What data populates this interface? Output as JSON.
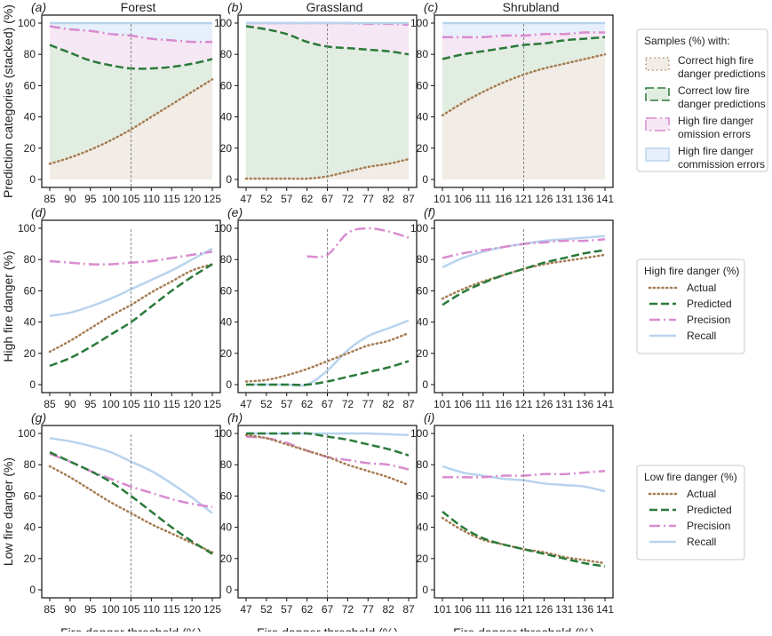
{
  "colors": {
    "actual": "#a67c52",
    "predicted": "#2a7a3a",
    "precision": "#d98bd0",
    "recall": "#b8d3ee",
    "fill_actual": "#f1ece5",
    "fill_predicted": "#e2ede2",
    "fill_omission": "#f6e7f4",
    "fill_commission": "#e7f0fa",
    "axis": "#111111",
    "vline": "#888888",
    "legend_border": "#c8c8c8"
  },
  "figure": {
    "column_titles": [
      "Forest",
      "Grassland",
      "Shrubland"
    ],
    "x_axis_label": "Fire danger threshold (%)",
    "row_labels": [
      "Prediction categories (stacked) (%)",
      "High fire danger (%)",
      "Low fire danger (%)"
    ],
    "panel_letters": [
      "(a)",
      "(b)",
      "(c)",
      "(d)",
      "(e)",
      "(f)",
      "(g)",
      "(h)",
      "(i)"
    ]
  },
  "legends": [
    {
      "title": "Samples (%) with:",
      "entries": [
        {
          "label_lines": [
            "Correct high fire",
            "danger predictions"
          ],
          "style": "actual-fill"
        },
        {
          "label_lines": [
            "Correct low fire",
            "danger predictions"
          ],
          "style": "predicted-fill"
        },
        {
          "label_lines": [
            "High fire danger",
            "omission errors"
          ],
          "style": "precision-fill"
        },
        {
          "label_lines": [
            "High fire danger",
            "commission errors"
          ],
          "style": "recall-fill"
        }
      ]
    },
    {
      "title": "High fire danger (%)",
      "entries": [
        {
          "label_lines": [
            "Actual"
          ],
          "style": "actual"
        },
        {
          "label_lines": [
            "Predicted"
          ],
          "style": "predicted"
        },
        {
          "label_lines": [
            "Precision"
          ],
          "style": "precision"
        },
        {
          "label_lines": [
            "Recall"
          ],
          "style": "recall"
        }
      ]
    },
    {
      "title": "Low fire danger (%)",
      "entries": [
        {
          "label_lines": [
            "Actual"
          ],
          "style": "actual"
        },
        {
          "label_lines": [
            "Predicted"
          ],
          "style": "predicted"
        },
        {
          "label_lines": [
            "Precision"
          ],
          "style": "precision"
        },
        {
          "label_lines": [
            "Recall"
          ],
          "style": "recall"
        }
      ]
    }
  ],
  "chart_data": [
    {
      "panel": "(a)",
      "type": "area",
      "title": "Forest",
      "ylabel": "Prediction categories (stacked) (%)",
      "xlabel": "",
      "x": [
        85,
        90,
        95,
        100,
        105,
        110,
        115,
        120,
        125
      ],
      "xticks": [
        "85",
        "90",
        "95",
        "100",
        "105",
        "110",
        "115",
        "120",
        "125"
      ],
      "ylim": [
        0,
        100
      ],
      "yticks": [
        0,
        20,
        40,
        60,
        80,
        100
      ],
      "vline": 105,
      "series": [
        {
          "key": "actual",
          "values": [
            10,
            14,
            19,
            25,
            32,
            40,
            48,
            56,
            64
          ]
        },
        {
          "key": "predicted",
          "values": [
            86,
            81,
            76,
            73,
            71,
            71,
            72,
            74,
            77
          ]
        },
        {
          "key": "precision",
          "values": [
            98,
            96,
            95,
            93,
            92,
            90,
            89,
            88,
            88
          ]
        },
        {
          "key": "recall",
          "values": [
            100,
            100,
            100,
            100,
            100,
            100,
            100,
            100,
            100
          ]
        }
      ]
    },
    {
      "panel": "(b)",
      "type": "area",
      "title": "Grassland",
      "ylabel": "",
      "xlabel": "",
      "x": [
        47,
        52,
        57,
        62,
        67,
        72,
        77,
        82,
        87
      ],
      "xticks": [
        "47",
        "52",
        "57",
        "62",
        "67",
        "72",
        "77",
        "82",
        "87"
      ],
      "ylim": [
        0,
        100
      ],
      "yticks": [
        0,
        20,
        40,
        60,
        80,
        100
      ],
      "vline": 67,
      "series": [
        {
          "key": "actual",
          "values": [
            0.5,
            0.5,
            0.5,
            0.5,
            2,
            5,
            8,
            10,
            13
          ]
        },
        {
          "key": "predicted",
          "values": [
            98,
            96,
            93,
            88,
            85,
            84,
            83,
            82,
            80
          ]
        },
        {
          "key": "precision",
          "values": [
            100,
            100,
            100,
            100,
            100,
            100,
            99.5,
            99.5,
            99
          ]
        },
        {
          "key": "recall",
          "values": [
            100,
            100,
            100,
            100,
            100,
            100,
            100,
            100,
            100
          ]
        }
      ]
    },
    {
      "panel": "(c)",
      "type": "area",
      "title": "Shrubland",
      "ylabel": "",
      "xlabel": "",
      "x": [
        101,
        106,
        111,
        116,
        121,
        126,
        131,
        136,
        141
      ],
      "xticks": [
        "101",
        "106",
        "111",
        "116",
        "121",
        "126",
        "131",
        "136",
        "141"
      ],
      "ylim": [
        0,
        100
      ],
      "yticks": [
        0,
        20,
        40,
        60,
        80,
        100
      ],
      "vline": 121,
      "series": [
        {
          "key": "actual",
          "values": [
            41,
            49,
            56,
            62,
            67,
            71,
            74,
            77,
            80
          ]
        },
        {
          "key": "predicted",
          "values": [
            77,
            80,
            82,
            84,
            86,
            87,
            89,
            90,
            91
          ]
        },
        {
          "key": "precision",
          "values": [
            91,
            91,
            91,
            92,
            92,
            93,
            93,
            94,
            94
          ]
        },
        {
          "key": "recall",
          "values": [
            100,
            100,
            100,
            100,
            100,
            100,
            100,
            100,
            100
          ]
        }
      ]
    },
    {
      "panel": "(d)",
      "type": "line",
      "title": "",
      "ylabel": "High fire danger (%)",
      "xlabel": "",
      "x": [
        85,
        90,
        95,
        100,
        105,
        110,
        115,
        120,
        125
      ],
      "xticks": [
        "85",
        "90",
        "95",
        "100",
        "105",
        "110",
        "115",
        "120",
        "125"
      ],
      "ylim": [
        0,
        100
      ],
      "yticks": [
        0,
        20,
        40,
        60,
        80,
        100
      ],
      "vline": 105,
      "series": [
        {
          "key": "actual",
          "values": [
            21,
            28,
            36,
            44,
            51,
            59,
            66,
            73,
            77
          ]
        },
        {
          "key": "predicted",
          "values": [
            12,
            17,
            24,
            32,
            40,
            50,
            60,
            69,
            77
          ]
        },
        {
          "key": "precision",
          "values": [
            79,
            78,
            77,
            77,
            78,
            79,
            81,
            83,
            85
          ]
        },
        {
          "key": "recall",
          "values": [
            44,
            46,
            50,
            55,
            61,
            67,
            73,
            80,
            87
          ]
        }
      ]
    },
    {
      "panel": "(e)",
      "type": "line",
      "title": "",
      "ylabel": "",
      "xlabel": "",
      "x": [
        47,
        52,
        57,
        62,
        67,
        72,
        77,
        82,
        87
      ],
      "xticks": [
        "47",
        "52",
        "57",
        "62",
        "67",
        "72",
        "77",
        "82",
        "87"
      ],
      "ylim": [
        0,
        100
      ],
      "yticks": [
        0,
        20,
        40,
        60,
        80,
        100
      ],
      "vline": 67,
      "series": [
        {
          "key": "actual",
          "values": [
            2,
            3,
            6,
            10,
            15,
            20,
            25,
            28,
            33
          ]
        },
        {
          "key": "predicted",
          "values": [
            0,
            0,
            0,
            0,
            2,
            5,
            8,
            11,
            15
          ]
        },
        {
          "key": "precision",
          "values": [
            null,
            null,
            null,
            82,
            83,
            97,
            100,
            98,
            94
          ]
        },
        {
          "key": "recall",
          "values": [
            0,
            0,
            0,
            0,
            9,
            22,
            31,
            36,
            41
          ]
        }
      ]
    },
    {
      "panel": "(f)",
      "type": "line",
      "title": "",
      "ylabel": "",
      "xlabel": "",
      "x": [
        101,
        106,
        111,
        116,
        121,
        126,
        131,
        136,
        141
      ],
      "xticks": [
        "101",
        "106",
        "111",
        "116",
        "121",
        "126",
        "131",
        "136",
        "141"
      ],
      "ylim": [
        0,
        100
      ],
      "yticks": [
        0,
        20,
        40,
        60,
        80,
        100
      ],
      "vline": 121,
      "series": [
        {
          "key": "actual",
          "values": [
            55,
            61,
            66,
            70,
            74,
            77,
            79,
            81,
            83
          ]
        },
        {
          "key": "predicted",
          "values": [
            51,
            59,
            65,
            70,
            74,
            78,
            81,
            84,
            86
          ]
        },
        {
          "key": "precision",
          "values": [
            81,
            84,
            86,
            88,
            90,
            91,
            92,
            92,
            93
          ]
        },
        {
          "key": "recall",
          "values": [
            75,
            81,
            85,
            88,
            90,
            92,
            93,
            94,
            95
          ]
        }
      ]
    },
    {
      "panel": "(g)",
      "type": "line",
      "title": "",
      "ylabel": "Low fire danger (%)",
      "xlabel": "Fire danger threshold (%)",
      "x": [
        85,
        90,
        95,
        100,
        105,
        110,
        115,
        120,
        125
      ],
      "xticks": [
        "85",
        "90",
        "95",
        "100",
        "105",
        "110",
        "115",
        "120",
        "125"
      ],
      "ylim": [
        0,
        100
      ],
      "yticks": [
        0,
        20,
        40,
        60,
        80,
        100
      ],
      "vline": 105,
      "series": [
        {
          "key": "actual",
          "values": [
            79,
            72,
            64,
            56,
            49,
            42,
            36,
            30,
            24
          ]
        },
        {
          "key": "predicted",
          "values": [
            88,
            82,
            76,
            69,
            60,
            50,
            40,
            31,
            23
          ]
        },
        {
          "key": "precision",
          "values": [
            87,
            82,
            76,
            71,
            66,
            62,
            58,
            55,
            53
          ]
        },
        {
          "key": "recall",
          "values": [
            97,
            95,
            92,
            88,
            82,
            76,
            68,
            59,
            49
          ]
        }
      ]
    },
    {
      "panel": "(h)",
      "type": "line",
      "title": "",
      "ylabel": "",
      "xlabel": "Fire danger threshold (%)",
      "x": [
        47,
        52,
        57,
        62,
        67,
        72,
        77,
        82,
        87
      ],
      "xticks": [
        "47",
        "52",
        "57",
        "62",
        "67",
        "72",
        "77",
        "82",
        "87"
      ],
      "ylim": [
        0,
        100
      ],
      "yticks": [
        0,
        20,
        40,
        60,
        80,
        100
      ],
      "vline": 67,
      "series": [
        {
          "key": "actual",
          "values": [
            99,
            97,
            93,
            89,
            85,
            80,
            76,
            72,
            67
          ]
        },
        {
          "key": "predicted",
          "values": [
            100,
            100,
            100,
            100,
            98,
            96,
            93,
            90,
            86
          ]
        },
        {
          "key": "precision",
          "values": [
            98,
            97,
            94,
            89,
            85,
            83,
            81,
            80,
            77
          ]
        },
        {
          "key": "recall",
          "values": [
            100,
            100,
            100,
            100,
            100,
            100,
            100,
            99.5,
            99
          ]
        }
      ]
    },
    {
      "panel": "(i)",
      "type": "line",
      "title": "",
      "ylabel": "",
      "xlabel": "Fire danger threshold (%)",
      "x": [
        101,
        106,
        111,
        116,
        121,
        126,
        131,
        136,
        141
      ],
      "xticks": [
        "101",
        "106",
        "111",
        "116",
        "121",
        "126",
        "131",
        "136",
        "141"
      ],
      "ylim": [
        0,
        100
      ],
      "yticks": [
        0,
        20,
        40,
        60,
        80,
        100
      ],
      "vline": 121,
      "series": [
        {
          "key": "actual",
          "values": [
            46,
            38,
            32,
            29,
            26,
            24,
            21,
            19,
            17
          ]
        },
        {
          "key": "predicted",
          "values": [
            50,
            40,
            33,
            29,
            26,
            23,
            20,
            17,
            15
          ]
        },
        {
          "key": "precision",
          "values": [
            72,
            72,
            72,
            73,
            73,
            74,
            74,
            75,
            76
          ]
        },
        {
          "key": "recall",
          "values": [
            79,
            75,
            73,
            71,
            70,
            68,
            67,
            66,
            63
          ]
        }
      ]
    }
  ]
}
